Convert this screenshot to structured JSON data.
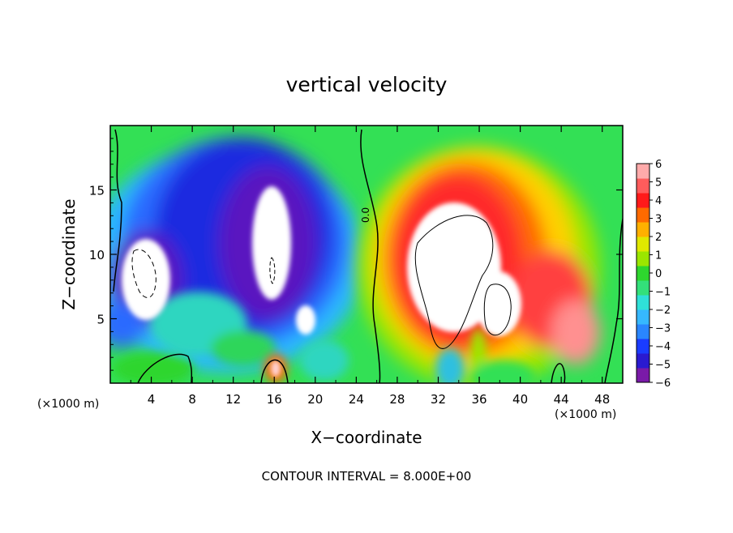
{
  "chart_data": {
    "type": "heatmap",
    "title": "vertical velocity",
    "xlabel": "X−coordinate",
    "ylabel": "Z−coordinate",
    "x_unit_left": "(×1000 m)",
    "x_unit_right": "(×1000 m)",
    "footer": "CONTOUR INTERVAL = 8.000E+00",
    "contour_label": "0.0",
    "xlim": [
      0,
      50
    ],
    "ylim": [
      0,
      20
    ],
    "x_ticks": [
      "4",
      "8",
      "12",
      "16",
      "20",
      "24",
      "28",
      "32",
      "36",
      "40",
      "44",
      "48"
    ],
    "y_ticks": [
      "5",
      "10",
      "15"
    ],
    "colorbar": {
      "labels": [
        "6",
        "5",
        "4",
        "3",
        "2",
        "1",
        "0",
        "−1",
        "−2",
        "−3",
        "−4",
        "−5",
        "−6"
      ],
      "range": [
        -6,
        6
      ],
      "colors": [
        "#7a1aa8",
        "#2a1ad0",
        "#1a3cff",
        "#2a86ff",
        "#36b8ff",
        "#2fe0d8",
        "#33e07a",
        "#2ed62e",
        "#9be600",
        "#e0e800",
        "#ffb000",
        "#ff6a00",
        "#ff1a1a",
        "#ff5c5c",
        "#ffaaaa"
      ]
    },
    "regions": [
      {
        "name": "downdraft-left",
        "x": [
          2.0,
          6.0
        ],
        "z": [
          5.0,
          11.0
        ],
        "w": -8
      },
      {
        "name": "downdraft-center",
        "x": [
          14.0,
          18.5
        ],
        "z": [
          6.0,
          14.5
        ],
        "w": -8
      },
      {
        "name": "downdraft-small",
        "x": [
          18.5,
          20.5
        ],
        "z": [
          4.0,
          6.5
        ],
        "w": -8
      },
      {
        "name": "updraft",
        "x": [
          29.0,
          38.5
        ],
        "z": [
          3.0,
          14.0
        ],
        "w": 8
      },
      {
        "name": "surface-plume",
        "x": [
          15.5,
          16.5
        ],
        "z": [
          0.0,
          2.5
        ],
        "w": 5
      }
    ]
  }
}
